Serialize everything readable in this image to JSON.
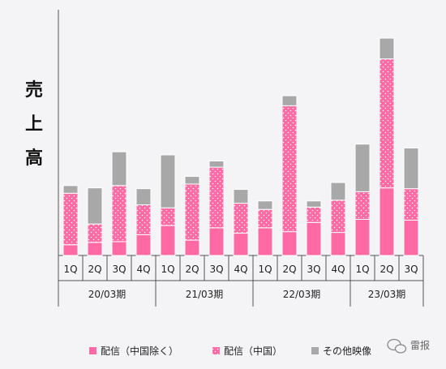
{
  "chart_data": {
    "type": "bar",
    "stacked": true,
    "ylabel": "売上高",
    "xlabel": "",
    "title": "",
    "categories": [
      "1Q",
      "2Q",
      "3Q",
      "4Q",
      "1Q",
      "2Q",
      "3Q",
      "4Q",
      "1Q",
      "2Q",
      "3Q",
      "4Q",
      "1Q",
      "2Q",
      "3Q"
    ],
    "groups": [
      {
        "label": "20/03期",
        "count": 4
      },
      {
        "label": "21/03期",
        "count": 4
      },
      {
        "label": "22/03期",
        "count": 4
      },
      {
        "label": "23/03期",
        "count": 3
      }
    ],
    "series": [
      {
        "name": "配信（中国除く）",
        "color": "#ff69a4",
        "pattern": "solid",
        "values": [
          14,
          17,
          18,
          27,
          39,
          20,
          36,
          29,
          36,
          31,
          43,
          30,
          47,
          88,
          46
        ]
      },
      {
        "name": "配信（中国）",
        "color": "#ff69a4",
        "pattern": "dotted",
        "values": [
          67,
          24,
          73,
          39,
          23,
          73,
          79,
          39,
          24,
          164,
          20,
          42,
          36,
          168,
          41
        ]
      },
      {
        "name": "その他映像",
        "color": "#a8a8a8",
        "pattern": "solid",
        "values": [
          10,
          47,
          44,
          21,
          69,
          10,
          8,
          18,
          11,
          13,
          8,
          23,
          62,
          27,
          53
        ]
      }
    ],
    "ylim": [
      0,
      320
    ],
    "grid": false,
    "legend_position": "bottom"
  },
  "watermark": "雷报",
  "colors": {
    "background": "#f4f4f6",
    "axis": "#555555",
    "text": "#222222"
  }
}
